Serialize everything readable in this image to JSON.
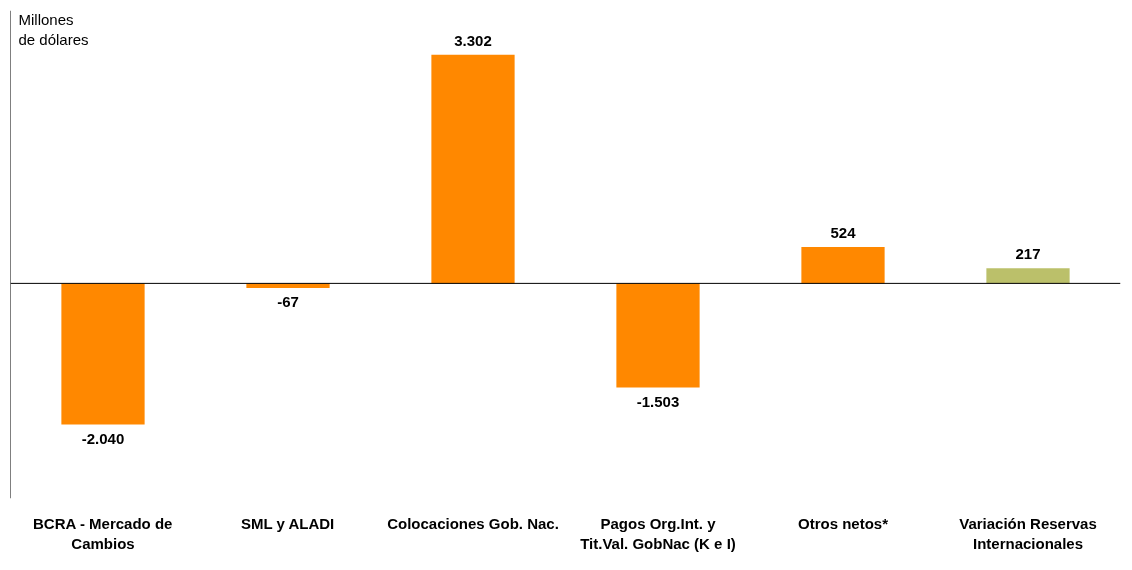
{
  "chart_data": {
    "type": "bar",
    "ylabel": "Millones de dólares",
    "categories": [
      "BCRA - Mercado de Cambios",
      "SML y ALADI",
      "Colocaciones Gob. Nac.",
      "Pagos Org.Int. y Tit.Val. GobNac (K e I)",
      "Otros netos*",
      "Variación Reservas Internacionales"
    ],
    "values": [
      -2040,
      -67,
      3302,
      -1503,
      524,
      217
    ],
    "colors": [
      "#ff8800",
      "#ff8800",
      "#ff8800",
      "#ff8800",
      "#ff8800",
      "#bbc06a"
    ],
    "value_labels": [
      "-2.040",
      "-67",
      "3.302",
      "-1.503",
      "524",
      "217"
    ],
    "grid": false
  }
}
